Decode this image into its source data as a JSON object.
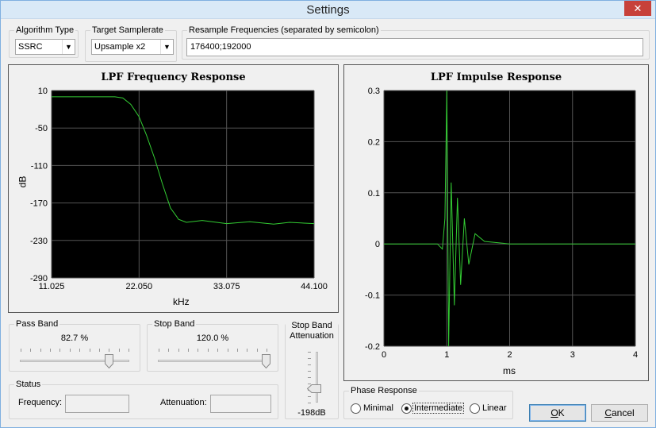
{
  "window": {
    "title": "Settings",
    "close_glyph": "✕"
  },
  "algorithm": {
    "legend": "Algorithm Type",
    "value": "SSRC"
  },
  "target": {
    "legend": "Target Samplerate",
    "value": "Upsample x2"
  },
  "resample": {
    "legend": "Resample Frequencies (separated by semicolon)",
    "value": "176400;192000"
  },
  "freq_chart": {
    "chart_data": {
      "type": "line",
      "title": "LPF Frequency Response",
      "xlabel": "kHz",
      "ylabel": "dB",
      "xlim": [
        11.025,
        44.1
      ],
      "ylim": [
        -290,
        10
      ],
      "x_ticks": [
        "11.025",
        "22.050",
        "33.075",
        "44.100"
      ],
      "y_ticks": [
        "10",
        "-50",
        "-110",
        "-170",
        "-230",
        "-290"
      ],
      "grid": true,
      "series": [
        {
          "color": "#33cc33",
          "x": [
            11.025,
            15.0,
            19.0,
            20.0,
            21.0,
            22.05,
            23.0,
            24.0,
            25.0,
            26.0,
            26.8,
            27.0,
            28.0,
            30.0,
            33.075,
            36.0,
            39.0,
            41.0,
            44.1
          ],
          "y": [
            0,
            0,
            0,
            -2,
            -12,
            -32,
            -62,
            -98,
            -140,
            -178,
            -192,
            -196,
            -201,
            -198,
            -203,
            -200,
            -204,
            -201,
            -203
          ]
        }
      ]
    }
  },
  "impulse_chart": {
    "chart_data": {
      "type": "line",
      "title": "LPF Impulse Response",
      "xlabel": "ms",
      "ylabel": "",
      "xlim": [
        0,
        4
      ],
      "ylim": [
        -0.2,
        0.3
      ],
      "x_ticks": [
        "0",
        "1",
        "2",
        "3",
        "4"
      ],
      "y_ticks": [
        "0.3",
        "0.2",
        "0.1",
        "0",
        "-0.1",
        "-0.2"
      ],
      "grid": true,
      "series": [
        {
          "color": "#33cc33",
          "x": [
            0,
            0.85,
            0.93,
            0.97,
            1.0,
            1.03,
            1.07,
            1.12,
            1.17,
            1.22,
            1.28,
            1.35,
            1.45,
            1.6,
            2.0,
            4.0
          ],
          "y": [
            0,
            0,
            -0.01,
            0.05,
            0.3,
            -0.2,
            0.12,
            -0.12,
            0.09,
            -0.08,
            0.05,
            -0.04,
            0.02,
            0.005,
            0,
            0
          ]
        }
      ]
    }
  },
  "pass_band": {
    "legend": "Pass Band",
    "value": "82.7 %",
    "fraction": 0.827
  },
  "stop_band": {
    "legend": "Stop Band",
    "value": "120.0 %",
    "fraction": 1.0
  },
  "attenuation": {
    "legend_line1": "Stop Band",
    "legend_line2": "Attenuation",
    "value": "-198dB",
    "fraction": 0.72
  },
  "status": {
    "legend": "Status",
    "frequency_label": "Frequency:",
    "frequency_value": "",
    "attenuation_label": "Attenuation:",
    "attenuation_value": ""
  },
  "phase": {
    "legend": "Phase Response",
    "options": [
      "Minimal",
      "Intermediate",
      "Linear"
    ],
    "selected": "Intermediate"
  },
  "buttons": {
    "ok_mnemonic": "O",
    "ok_rest": "K",
    "cancel_mnemonic": "C",
    "cancel_rest": "ancel"
  }
}
